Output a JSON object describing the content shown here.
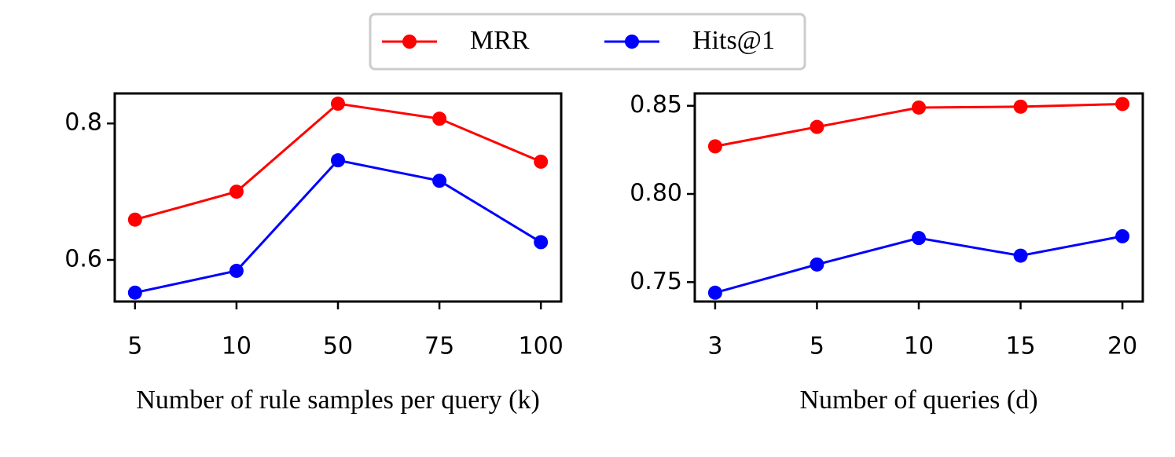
{
  "chart_data": [
    {
      "type": "line",
      "x_label": "Number of rule samples per query (k)",
      "categories": [
        "5",
        "10",
        "50",
        "75",
        "100"
      ],
      "ylim": [
        0.539,
        0.844
      ],
      "yticks": [
        0.6,
        0.8
      ],
      "series": [
        {
          "name": "MRR",
          "color": "#ff0000",
          "values": [
            0.659,
            0.7,
            0.829,
            0.807,
            0.744
          ]
        },
        {
          "name": "Hits@1",
          "color": "#0000ff",
          "values": [
            0.552,
            0.584,
            0.746,
            0.716,
            0.626
          ]
        }
      ]
    },
    {
      "type": "line",
      "x_label": "Number of queries (d)",
      "categories": [
        "3",
        "5",
        "10",
        "15",
        "20"
      ],
      "ylim": [
        0.739,
        0.857
      ],
      "yticks": [
        0.75,
        {
          "value": 0.8,
          "label": "0.80"
        },
        0.85
      ],
      "series": [
        {
          "name": "MRR",
          "color": "#ff0000",
          "values": [
            0.827,
            0.838,
            0.849,
            0.8495,
            0.851
          ]
        },
        {
          "name": "Hits@1",
          "color": "#0000ff",
          "values": [
            0.744,
            0.76,
            0.775,
            0.765,
            0.776
          ]
        }
      ]
    }
  ]
}
